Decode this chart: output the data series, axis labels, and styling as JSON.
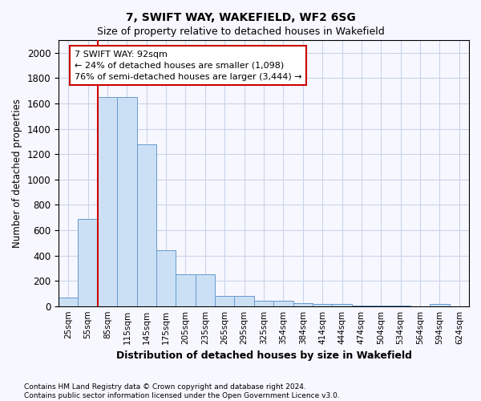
{
  "title1": "7, SWIFT WAY, WAKEFIELD, WF2 6SG",
  "title2": "Size of property relative to detached houses in Wakefield",
  "xlabel": "Distribution of detached houses by size in Wakefield",
  "ylabel": "Number of detached properties",
  "categories": [
    "25sqm",
    "55sqm",
    "85sqm",
    "115sqm",
    "145sqm",
    "175sqm",
    "205sqm",
    "235sqm",
    "265sqm",
    "295sqm",
    "325sqm",
    "354sqm",
    "384sqm",
    "414sqm",
    "444sqm",
    "474sqm",
    "504sqm",
    "534sqm",
    "564sqm",
    "594sqm",
    "624sqm"
  ],
  "values": [
    65,
    690,
    1650,
    1650,
    1280,
    440,
    250,
    250,
    80,
    80,
    45,
    40,
    25,
    20,
    20,
    5,
    5,
    5,
    0,
    20,
    0
  ],
  "bar_color": "#cce0f5",
  "bar_edge_color": "#6699cc",
  "vline_color": "#cc0000",
  "annotation_text": "7 SWIFT WAY: 92sqm\n← 24% of detached houses are smaller (1,098)\n76% of semi-detached houses are larger (3,444) →",
  "annotation_box_color": "white",
  "annotation_box_edge": "#cc0000",
  "ylim": [
    0,
    2100
  ],
  "yticks": [
    0,
    200,
    400,
    600,
    800,
    1000,
    1200,
    1400,
    1600,
    1800,
    2000
  ],
  "footer1": "Contains HM Land Registry data © Crown copyright and database right 2024.",
  "footer2": "Contains public sector information licensed under the Open Government Licence v3.0.",
  "bg_color": "#f7f7ff",
  "grid_color": "#c8d4e8"
}
